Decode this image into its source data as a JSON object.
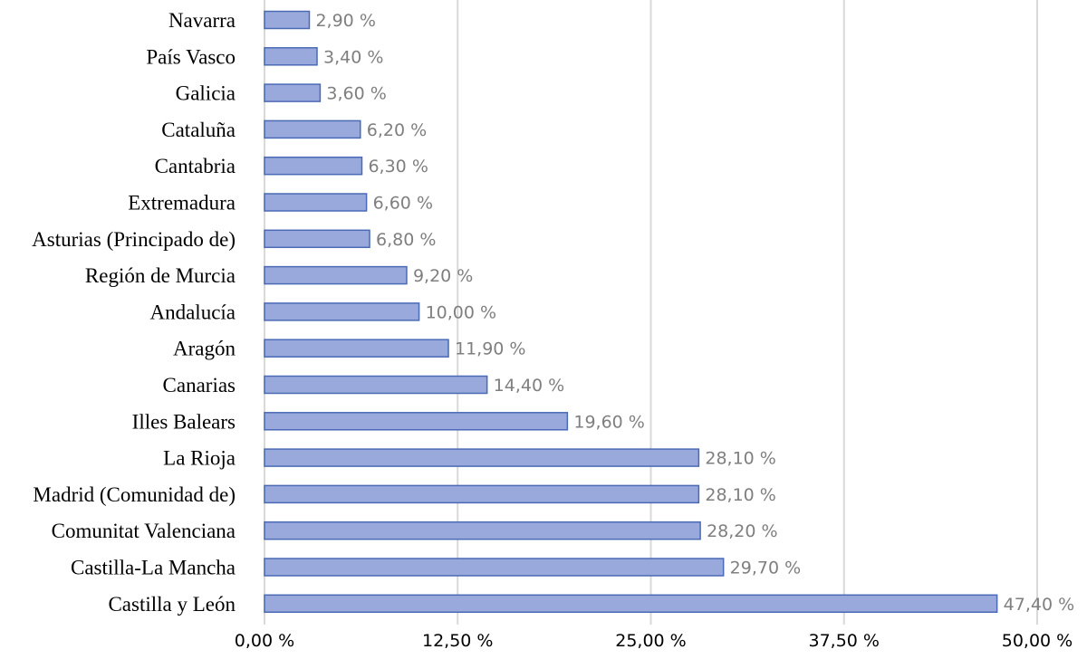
{
  "chart_data": {
    "type": "bar",
    "orientation": "horizontal",
    "categories": [
      "Navarra",
      "País Vasco",
      "Galicia",
      "Cataluña",
      "Cantabria",
      "Extremadura",
      "Asturias (Principado de)",
      "Región de Murcia",
      "Andalucía",
      "Aragón",
      "Canarias",
      "Illes Balears",
      "La Rioja",
      "Madrid (Comunidad de)",
      "Comunitat Valenciana",
      "Castilla-La Mancha",
      "Castilla y León"
    ],
    "values": [
      2.9,
      3.4,
      3.6,
      6.2,
      6.3,
      6.6,
      6.8,
      9.2,
      10.0,
      11.9,
      14.4,
      19.6,
      28.1,
      28.1,
      28.2,
      29.7,
      47.4
    ],
    "data_labels": [
      "2,90 %",
      "3,40 %",
      "3,60 %",
      "6,20 %",
      "6,30 %",
      "6,60 %",
      "6,80 %",
      "9,20 %",
      "10,00 %",
      "11,90 %",
      "14,40 %",
      "19,60 %",
      "28,10 %",
      "28,10 %",
      "28,20 %",
      "29,70 %",
      "47,40 %"
    ],
    "xlim": [
      0,
      50
    ],
    "ticks": [
      0,
      12.5,
      25,
      37.5,
      50
    ],
    "tick_labels": [
      "0,00 %",
      "12,50 %",
      "25,00 %",
      "37,50 %",
      "50,00 %"
    ],
    "grid": true,
    "title": "",
    "xlabel": "",
    "ylabel": ""
  },
  "colors": {
    "bar_fill": "#9aa9db",
    "bar_stroke": "#4a6ab6",
    "grid": "#d9d9d9",
    "data_label": "#7f7f7f"
  }
}
